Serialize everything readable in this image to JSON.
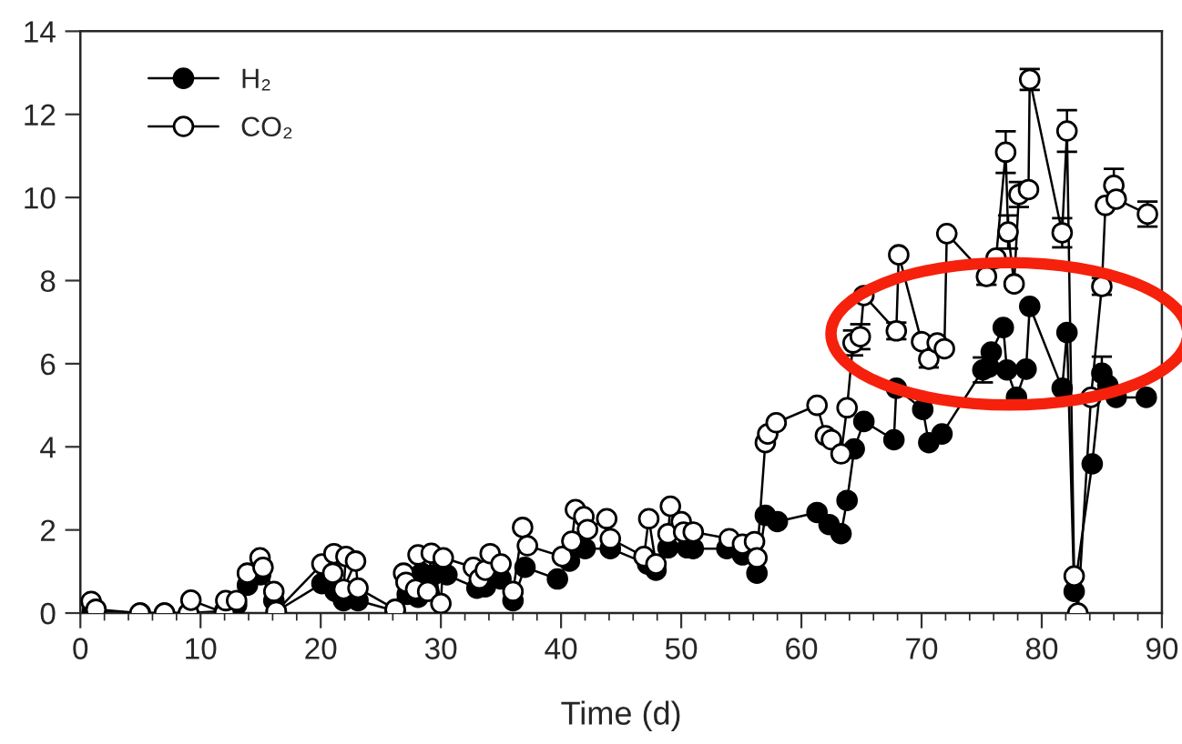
{
  "chart_data": {
    "type": "line",
    "xlabel": "Time (d)",
    "xlim": [
      0,
      90
    ],
    "ylim": [
      0,
      14
    ],
    "xticks": [
      0,
      {
        "value": 2,
        "label": null
      },
      {
        "value": 4,
        "label": null
      },
      {
        "value": 6,
        "label": null
      },
      {
        "value": 8,
        "label": null
      },
      10,
      {
        "value": 12,
        "label": null
      },
      {
        "value": 14,
        "label": null
      },
      {
        "value": 16,
        "label": null
      },
      {
        "value": 18,
        "label": null
      },
      20,
      {
        "value": 22,
        "label": null
      },
      {
        "value": 24,
        "label": null
      },
      {
        "value": 26,
        "label": null
      },
      {
        "value": 28,
        "label": null
      },
      30,
      {
        "value": 32,
        "label": null
      },
      {
        "value": 34,
        "label": null
      },
      {
        "value": 36,
        "label": null
      },
      {
        "value": 38,
        "label": null
      },
      40,
      {
        "value": 42,
        "label": null
      },
      {
        "value": 44,
        "label": null
      },
      {
        "value": 46,
        "label": null
      },
      {
        "value": 48,
        "label": null
      },
      50,
      {
        "value": 52,
        "label": null
      },
      {
        "value": 54,
        "label": null
      },
      {
        "value": 56,
        "label": null
      },
      {
        "value": 58,
        "label": null
      },
      60,
      {
        "value": 62,
        "label": null
      },
      {
        "value": 64,
        "label": null
      },
      {
        "value": 66,
        "label": null
      },
      {
        "value": 68,
        "label": null
      },
      70,
      {
        "value": 72,
        "label": null
      },
      {
        "value": 74,
        "label": null
      },
      {
        "value": 76,
        "label": null
      },
      {
        "value": 78,
        "label": null
      },
      80,
      {
        "value": 82,
        "label": null
      },
      {
        "value": 84,
        "label": null
      },
      {
        "value": 86,
        "label": null
      },
      {
        "value": 88,
        "label": null
      },
      90
    ],
    "yticks": [
      0,
      2,
      4,
      6,
      8,
      10,
      12,
      14
    ],
    "grid": false,
    "legend": "top left",
    "marker": "circle",
    "line_style": "solid",
    "series": [
      {
        "name": "H₂",
        "color": "#000000",
        "x": [
          1.0,
          5,
          7,
          9,
          12,
          13,
          13.9,
          15,
          16.1,
          16.3,
          20.1,
          21.2,
          21.9,
          23.1,
          26.2,
          27.2,
          28.1,
          28.4,
          29.4,
          30.5,
          33,
          33.7,
          35,
          36,
          37,
          39.7,
          40.7,
          42,
          44.1,
          47.2,
          47.9,
          48.9,
          50.5,
          51,
          53.8,
          55.1,
          56.3,
          57,
          58,
          61.3,
          62.3,
          63.3,
          63.8,
          64.4,
          65.2,
          67.7,
          67.9,
          70.1,
          70.6,
          71.7,
          75.1,
          75.6,
          75.8,
          76.8,
          77.1,
          77.9,
          78.7,
          79,
          81.7,
          82.1,
          82.7,
          84.2,
          85,
          85.5,
          86.2,
          88.7
        ],
        "values": [
          0.05,
          0,
          0,
          0,
          0.05,
          0.2,
          0.67,
          0.92,
          0.3,
          0.04,
          0.71,
          0.52,
          0.3,
          0.3,
          0.05,
          0.45,
          0.38,
          0.96,
          0.92,
          0.92,
          0.6,
          0.63,
          0.82,
          0.3,
          1.1,
          0.82,
          1.25,
          1.55,
          1.55,
          1.18,
          1.03,
          1.57,
          1.57,
          1.55,
          1.55,
          1.4,
          0.96,
          2.35,
          2.2,
          2.42,
          2.13,
          1.91,
          2.71,
          3.95,
          4.61,
          4.17,
          5.41,
          4.9,
          4.1,
          4.31,
          5.85,
          5.92,
          6.28,
          6.87,
          5.85,
          5.19,
          5.87,
          7.38,
          5.41,
          6.75,
          0.52,
          3.59,
          5.77,
          5.48,
          5.19,
          5.19
        ],
        "errors": [
          null,
          null,
          null,
          null,
          null,
          null,
          null,
          null,
          null,
          null,
          null,
          null,
          null,
          null,
          null,
          null,
          null,
          null,
          null,
          null,
          null,
          null,
          null,
          null,
          null,
          null,
          null,
          null,
          null,
          null,
          null,
          null,
          null,
          null,
          null,
          null,
          null,
          null,
          null,
          null,
          null,
          null,
          null,
          null,
          null,
          null,
          null,
          null,
          null,
          null,
          0.3,
          null,
          null,
          null,
          null,
          null,
          null,
          null,
          null,
          null,
          null,
          null,
          0.4,
          null,
          null,
          null
        ]
      },
      {
        "name": "CO₂",
        "color": "#ffffff",
        "x": [
          0.9,
          1.3,
          4.95,
          7,
          9,
          9.2,
          12,
          12.1,
          13,
          13.9,
          14.95,
          15.2,
          16.1,
          16.3,
          20.1,
          21,
          21.1,
          22.1,
          21.9,
          22.9,
          23.1,
          26.2,
          26.9,
          27.1,
          27.9,
          28.1,
          28.9,
          29.2,
          30,
          30.2,
          32.7,
          33.2,
          33.7,
          34.1,
          35,
          36,
          36.8,
          37.2,
          40.1,
          40.9,
          41.2,
          41.9,
          42.2,
          43.8,
          44.1,
          46.9,
          47.3,
          47.9,
          48.9,
          49.1,
          50,
          50.2,
          51,
          54,
          55.1,
          56.1,
          56.3,
          57,
          57.2,
          57.9,
          61.3,
          62,
          62.5,
          63.3,
          63.8,
          64.3,
          64.9,
          65.2,
          67.9,
          68.1,
          70,
          70.6,
          71.3,
          71.9,
          72.1,
          75.4,
          76.2,
          77,
          77.2,
          77.7,
          78.1,
          78.9,
          79,
          81.7,
          82.1,
          82.7,
          83,
          84.1,
          85,
          85.3,
          86,
          86.2,
          88.8
        ],
        "values": [
          0.28,
          0.09,
          0,
          0,
          0,
          0.31,
          0,
          0.3,
          0.3,
          0.96,
          1.33,
          1.1,
          0.52,
          0.04,
          1.18,
          0.96,
          1.43,
          1.36,
          0.57,
          1.25,
          0.6,
          0.09,
          0.96,
          0.74,
          0.57,
          1.4,
          0.52,
          1.44,
          0.23,
          1.33,
          1.1,
          0.82,
          1.03,
          1.43,
          1.18,
          0.52,
          2.06,
          1.62,
          1.36,
          1.73,
          2.49,
          2.32,
          2.01,
          2.27,
          1.79,
          1.36,
          2.27,
          1.18,
          1.91,
          2.57,
          2.2,
          1.95,
          1.95,
          1.79,
          1.66,
          1.72,
          1.33,
          4.1,
          4.31,
          4.58,
          5.0,
          4.27,
          4.17,
          3.83,
          4.94,
          6.5,
          6.65,
          7.64,
          6.79,
          8.62,
          6.53,
          6.11,
          6.5,
          6.36,
          9.13,
          8.1,
          8.54,
          11.09,
          9.17,
          7.92,
          10.07,
          10.19,
          12.84,
          9.15,
          11.6,
          0.89,
          0,
          5.19,
          7.86,
          9.81,
          10.29,
          9.96,
          9.6
        ],
        "errors": [
          null,
          null,
          null,
          null,
          null,
          null,
          null,
          null,
          null,
          null,
          null,
          null,
          null,
          null,
          null,
          null,
          null,
          null,
          null,
          null,
          null,
          null,
          null,
          null,
          null,
          null,
          null,
          null,
          null,
          null,
          null,
          null,
          null,
          null,
          null,
          null,
          null,
          null,
          null,
          null,
          null,
          null,
          null,
          null,
          null,
          null,
          null,
          null,
          null,
          null,
          null,
          null,
          null,
          null,
          null,
          null,
          null,
          null,
          null,
          null,
          null,
          null,
          null,
          null,
          null,
          0.3,
          0.3,
          null,
          0.2,
          null,
          null,
          0.2,
          null,
          null,
          null,
          0.2,
          null,
          0.5,
          0.4,
          null,
          0.3,
          null,
          0.25,
          0.35,
          0.5,
          null,
          null,
          null,
          0.2,
          null,
          0.4,
          null,
          0.3
        ]
      }
    ]
  }
}
